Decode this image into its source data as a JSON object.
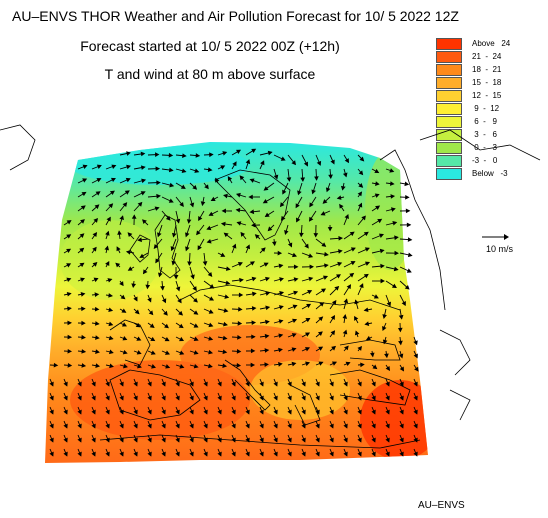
{
  "header": {
    "title": "AU–ENVS THOR Weather and Air Pollution Forecast for 10/ 5 2022  12Z",
    "forecast_start": "Forecast started at 10/ 5 2022  00Z (+12h)",
    "field": "T and wind at 80 m above surface"
  },
  "legend": {
    "items": [
      {
        "label": "Above   24",
        "color": "#ff3300"
      },
      {
        "label": "21  -  24",
        "color": "#ff5a10"
      },
      {
        "label": "18  -  21",
        "color": "#ff8a1a"
      },
      {
        "label": "15  -  18",
        "color": "#ffad2a"
      },
      {
        "label": "12  -  15",
        "color": "#ffd030"
      },
      {
        "label": " 9  -  12",
        "color": "#ffee33"
      },
      {
        "label": " 6  -   9",
        "color": "#eef53a"
      },
      {
        "label": " 3  -   6",
        "color": "#c5ef3f"
      },
      {
        "label": " 0  -   3",
        "color": "#9fe84a"
      },
      {
        "label": "-3  -   0",
        "color": "#55e8a8"
      },
      {
        "label": "Below   -3",
        "color": "#2ae8e0"
      }
    ]
  },
  "scale": {
    "label": "10 m/s"
  },
  "credit": "AU–ENVS"
}
